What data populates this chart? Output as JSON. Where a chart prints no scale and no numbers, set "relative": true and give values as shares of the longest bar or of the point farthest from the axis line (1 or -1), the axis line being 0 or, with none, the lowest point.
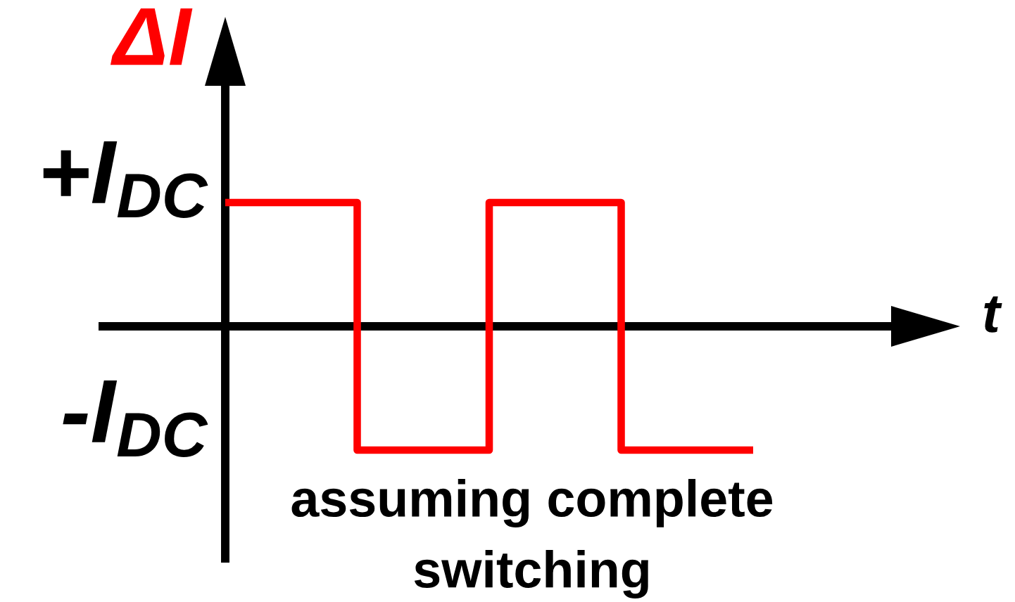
{
  "chart_data": {
    "type": "step",
    "ylabel": "ΔI",
    "xlabel": "t",
    "categories": [
      null,
      null,
      null,
      null,
      null
    ],
    "relative": true,
    "series": [
      {
        "color": "#ff0000",
        "values": [
          1,
          -1,
          1,
          -1,
          -1
        ]
      }
    ],
    "annotations": [
      "+I$_{DC}$",
      "-I$_{DC}$",
      "assuming complete\nswitching"
    ]
  }
}
